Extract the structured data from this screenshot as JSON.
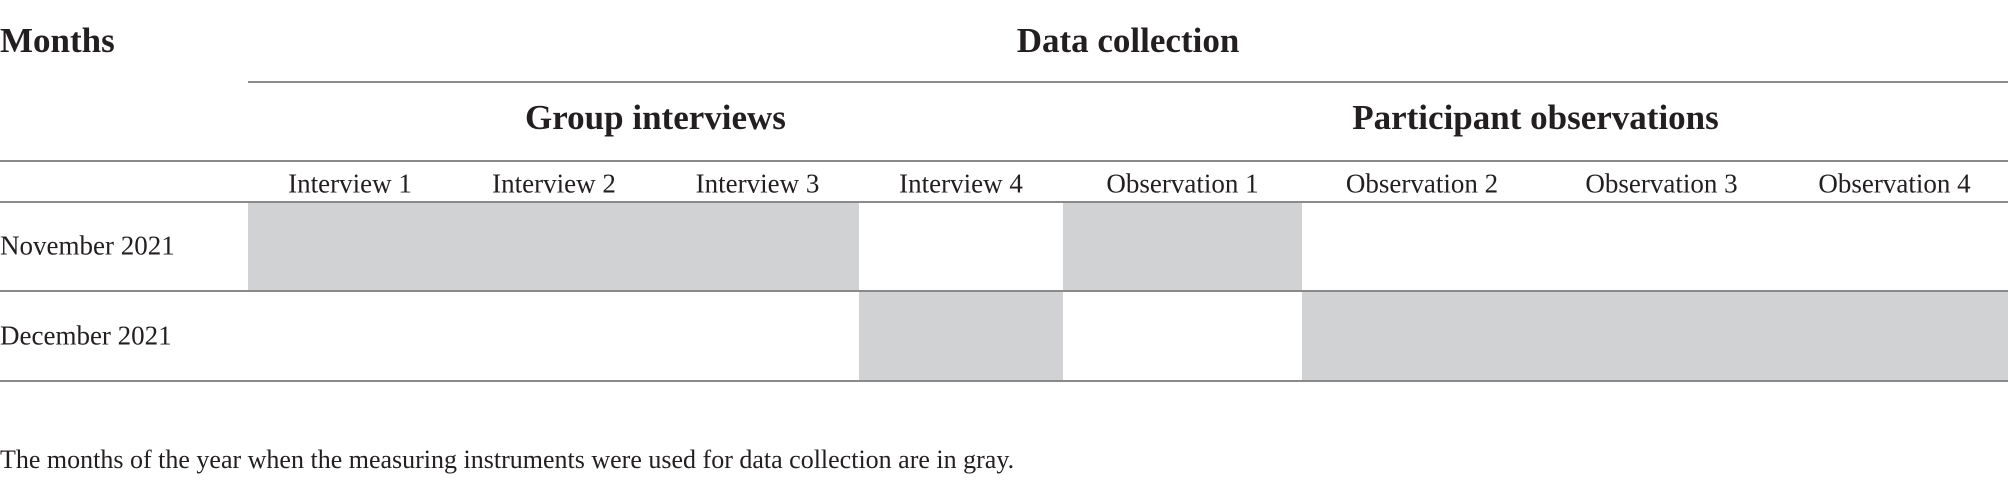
{
  "header": {
    "stub": "Months",
    "spanner": "Data collection",
    "groups": [
      {
        "label": "Group interviews",
        "span": [
          0,
          3
        ]
      },
      {
        "label": "Participant observations",
        "span": [
          4,
          7
        ]
      }
    ],
    "columns": [
      "Interview 1",
      "Interview 2",
      "Interview 3",
      "Interview 4",
      "Observation 1",
      "Observation 2",
      "Observation 3",
      "Observation 4"
    ]
  },
  "table": {
    "rows": [
      {
        "label": "November 2021",
        "used": [
          true,
          true,
          true,
          false,
          true,
          false,
          false,
          false
        ]
      },
      {
        "label": "December 2021",
        "used": [
          false,
          false,
          false,
          true,
          false,
          true,
          true,
          true
        ]
      }
    ]
  },
  "footnote": "The months of the year when the measuring instruments were used for data collection are in gray."
}
